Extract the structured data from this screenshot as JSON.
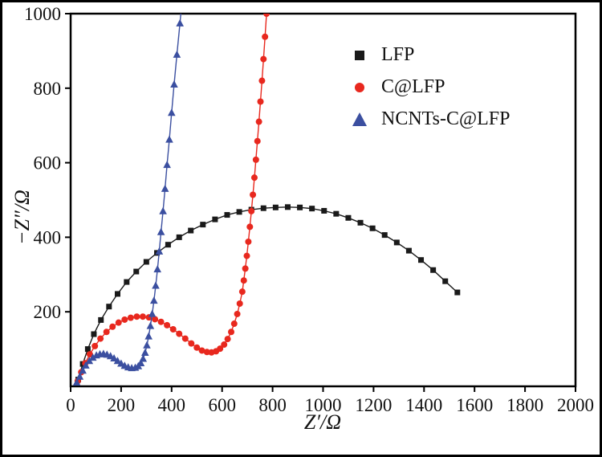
{
  "frame": {
    "border_color": "#000000",
    "background": "#ffffff"
  },
  "chart_data": {
    "type": "scatter",
    "title": "",
    "xlabel": "Z′/Ω",
    "ylabel": "−Z″/Ω",
    "xlim": [
      0,
      2000
    ],
    "ylim": [
      0,
      1000
    ],
    "x_ticks": [
      0,
      200,
      400,
      600,
      800,
      1000,
      1200,
      1400,
      1600,
      1800,
      2000
    ],
    "y_ticks": [
      200,
      400,
      600,
      800,
      1000
    ],
    "grid": false,
    "legend_position": "upper-right-inside",
    "series": [
      {
        "name": "LFP",
        "marker": "square",
        "color": "#1a1a1a",
        "points": [
          [
            30,
            18
          ],
          [
            48,
            60
          ],
          [
            68,
            100
          ],
          [
            92,
            140
          ],
          [
            120,
            178
          ],
          [
            152,
            214
          ],
          [
            186,
            248
          ],
          [
            222,
            280
          ],
          [
            260,
            308
          ],
          [
            300,
            334
          ],
          [
            342,
            358
          ],
          [
            386,
            380
          ],
          [
            430,
            400
          ],
          [
            476,
            418
          ],
          [
            524,
            434
          ],
          [
            572,
            448
          ],
          [
            620,
            460
          ],
          [
            668,
            468
          ],
          [
            716,
            474
          ],
          [
            764,
            478
          ],
          [
            812,
            480
          ],
          [
            860,
            481
          ],
          [
            908,
            480
          ],
          [
            956,
            477
          ],
          [
            1004,
            471
          ],
          [
            1052,
            463
          ],
          [
            1100,
            452
          ],
          [
            1148,
            439
          ],
          [
            1196,
            424
          ],
          [
            1244,
            406
          ],
          [
            1292,
            386
          ],
          [
            1340,
            364
          ],
          [
            1388,
            339
          ],
          [
            1436,
            312
          ],
          [
            1484,
            282
          ],
          [
            1532,
            252
          ]
        ]
      },
      {
        "name": "C@LFP",
        "marker": "circle",
        "color": "#e8281e",
        "points": [
          [
            28,
            14
          ],
          [
            42,
            38
          ],
          [
            58,
            62
          ],
          [
            76,
            86
          ],
          [
            96,
            108
          ],
          [
            118,
            128
          ],
          [
            142,
            146
          ],
          [
            166,
            160
          ],
          [
            190,
            171
          ],
          [
            214,
            179
          ],
          [
            238,
            184
          ],
          [
            262,
            187
          ],
          [
            286,
            187
          ],
          [
            310,
            185
          ],
          [
            334,
            180
          ],
          [
            358,
            173
          ],
          [
            382,
            164
          ],
          [
            406,
            153
          ],
          [
            430,
            141
          ],
          [
            454,
            128
          ],
          [
            478,
            115
          ],
          [
            500,
            104
          ],
          [
            520,
            96
          ],
          [
            540,
            92
          ],
          [
            558,
            91
          ],
          [
            576,
            94
          ],
          [
            592,
            101
          ],
          [
            608,
            112
          ],
          [
            622,
            127
          ],
          [
            636,
            146
          ],
          [
            648,
            168
          ],
          [
            660,
            194
          ],
          [
            670,
            222
          ],
          [
            680,
            254
          ],
          [
            686,
            284
          ],
          [
            692,
            316
          ],
          [
            698,
            350
          ],
          [
            704,
            388
          ],
          [
            710,
            428
          ],
          [
            716,
            470
          ],
          [
            722,
            514
          ],
          [
            728,
            560
          ],
          [
            734,
            608
          ],
          [
            740,
            658
          ],
          [
            746,
            710
          ],
          [
            752,
            764
          ],
          [
            758,
            820
          ],
          [
            764,
            878
          ],
          [
            770,
            938
          ],
          [
            776,
            1000
          ],
          [
            781,
            1055
          ]
        ]
      },
      {
        "name": "NCNTs-C@LFP",
        "marker": "triangle",
        "color": "#3b4fa0",
        "points": [
          [
            24,
            10
          ],
          [
            36,
            26
          ],
          [
            48,
            42
          ],
          [
            60,
            56
          ],
          [
            74,
            68
          ],
          [
            88,
            77
          ],
          [
            102,
            83
          ],
          [
            116,
            86
          ],
          [
            130,
            87
          ],
          [
            144,
            85
          ],
          [
            158,
            81
          ],
          [
            172,
            75
          ],
          [
            186,
            68
          ],
          [
            200,
            61
          ],
          [
            214,
            55
          ],
          [
            228,
            51
          ],
          [
            242,
            49
          ],
          [
            256,
            50
          ],
          [
            268,
            54
          ],
          [
            278,
            62
          ],
          [
            287,
            74
          ],
          [
            295,
            90
          ],
          [
            302,
            110
          ],
          [
            309,
            134
          ],
          [
            316,
            162
          ],
          [
            323,
            194
          ],
          [
            330,
            230
          ],
          [
            337,
            270
          ],
          [
            344,
            314
          ],
          [
            351,
            362
          ],
          [
            358,
            414
          ],
          [
            366,
            470
          ],
          [
            374,
            530
          ],
          [
            382,
            594
          ],
          [
            391,
            662
          ],
          [
            400,
            734
          ],
          [
            410,
            810
          ],
          [
            421,
            890
          ],
          [
            433,
            974
          ],
          [
            444,
            1055
          ]
        ]
      }
    ]
  }
}
